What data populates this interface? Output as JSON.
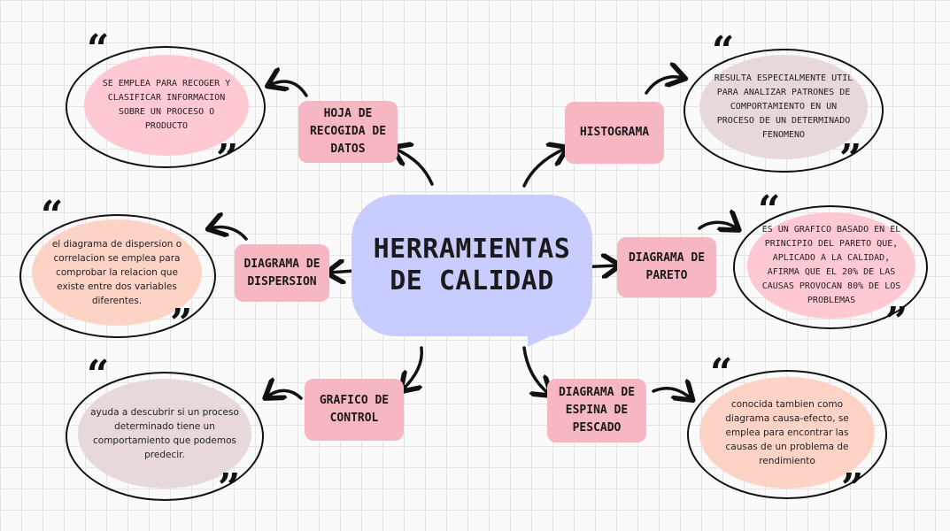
{
  "center": {
    "title": "HERRAMIENTAS DE CALIDAD"
  },
  "tools": [
    {
      "id": "hoja",
      "label": "HOJA DE\nRECOGIDA DE\nDATOS",
      "description": "SE EMPLEA PARA RECOGER Y CLASIFICAR INFORMACION SOBRE UN PROCESO O PRODUCTO"
    },
    {
      "id": "histograma",
      "label": "HISTOGRAMA",
      "description": "RESULTA ESPECIALMENTE UTIL PARA ANALIZAR PATRONES DE COMPORTAMIENTO EN UN PROCESO DE UN DETERMINADO FENOMENO"
    },
    {
      "id": "dispersion",
      "label": "DIAGRAMA DE\nDISPERSION",
      "description": "el diagrama de dispersion o correlacion se emplea para comprobar la relacion que existe entre dos variables diferentes."
    },
    {
      "id": "pareto",
      "label": "DIAGRAMA DE\nPARETO",
      "description": "ES UN GRAFICO BASADO EN EL PRINCIPIO DEL PARETO QUE, APLICADO A LA CALIDAD, AFIRMA QUE EL 20% DE LAS CAUSAS PROVOCAN 80% DE LOS PROBLEMAS"
    },
    {
      "id": "control",
      "label": "GRAFICO DE\nCONTROL",
      "description": "ayuda a descubrir si un proceso determinado tiene un comportamiento que podemos predecir."
    },
    {
      "id": "espina",
      "label": "DIAGRAMA DE\nESPINA DE\nPESCADO",
      "description": "conocida tambien como diagrama causa-efecto, se emplea para encontrar las causas de un problema de rendimiento"
    }
  ],
  "quote_glyphs": {
    "open": "“",
    "close": "”"
  },
  "colors": {
    "center": "#c8ccff",
    "tool_box": "#f7b7c2",
    "quote_pink": "#ffc9d4",
    "quote_mauve": "#e7d9da",
    "quote_peach": "#fdd3c6"
  }
}
